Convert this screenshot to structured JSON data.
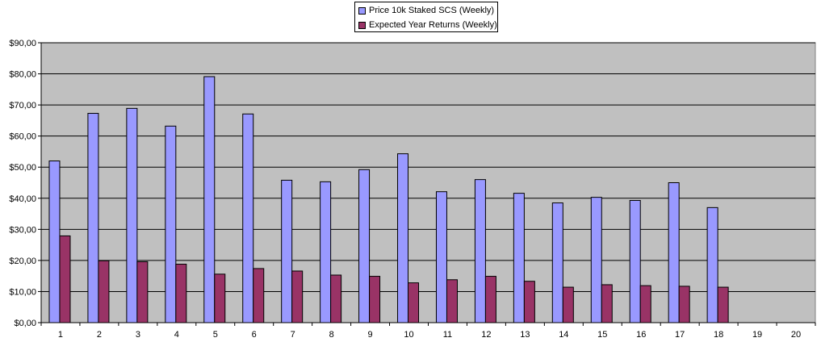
{
  "chart_data": {
    "type": "bar",
    "title": "",
    "xlabel": "",
    "ylabel": "",
    "categories": [
      "1",
      "2",
      "3",
      "4",
      "5",
      "6",
      "7",
      "8",
      "9",
      "10",
      "11",
      "12",
      "13",
      "14",
      "15",
      "16",
      "17",
      "18",
      "19",
      "20"
    ],
    "series": [
      {
        "name": "Price 10k Staked SCS (Weekly)",
        "color": "#9999ff",
        "values": [
          52.0,
          67.3,
          68.9,
          63.2,
          79.1,
          67.1,
          45.8,
          45.3,
          49.2,
          54.3,
          42.1,
          46.0,
          41.6,
          38.5,
          40.3,
          39.3,
          45.0,
          37.0,
          null,
          null
        ]
      },
      {
        "name": "Expected Year Returns (Weekly)",
        "color": "#993366",
        "values": [
          27.9,
          19.9,
          19.6,
          18.8,
          15.6,
          17.4,
          16.6,
          15.3,
          14.9,
          12.8,
          13.8,
          14.9,
          13.3,
          11.4,
          12.2,
          11.9,
          11.7,
          11.4,
          null,
          null
        ]
      }
    ],
    "ylim": [
      0,
      90
    ],
    "yticks": [
      "$0,00",
      "$10,00",
      "$20,00",
      "$30,00",
      "$40,00",
      "$50,00",
      "$60,00",
      "$70,00",
      "$80,00",
      "$90,00"
    ],
    "grid": true,
    "legend_position": "top-center",
    "plot_background": "#c0c0c0"
  }
}
